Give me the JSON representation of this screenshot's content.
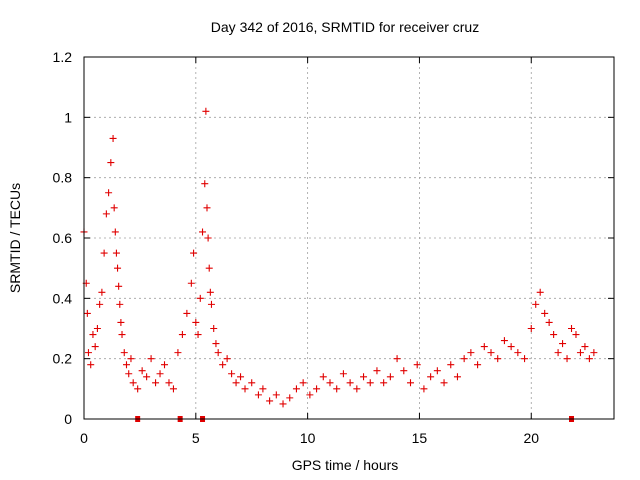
{
  "chart_data": {
    "type": "scatter",
    "title": "Day 342 of 2016, SRMTID for receiver cruz",
    "xlabel": "GPS time / hours",
    "ylabel": "SRMTID / TECUs",
    "xlim": [
      0,
      23.7
    ],
    "ylim": [
      0,
      1.2
    ],
    "x_ticks": [
      0,
      5,
      10,
      15,
      20
    ],
    "x_tick_labels": [
      "0",
      "5",
      "10",
      "15",
      "20"
    ],
    "y_ticks": [
      0,
      0.2,
      0.4,
      0.6,
      0.8,
      1.0,
      1.2
    ],
    "y_tick_labels": [
      "0",
      "0.2",
      "0.4",
      "0.6",
      "0.8",
      "1",
      "1.2"
    ],
    "grid": true,
    "marker": "+",
    "color": "#e00000",
    "series": [
      {
        "name": "SRMTID",
        "x": [
          0.0,
          0.1,
          0.15,
          0.2,
          0.3,
          0.4,
          0.5,
          0.6,
          0.7,
          0.8,
          0.9,
          1.0,
          1.1,
          1.2,
          1.3,
          1.35,
          1.4,
          1.45,
          1.5,
          1.55,
          1.6,
          1.65,
          1.7,
          1.8,
          1.9,
          2.0,
          2.1,
          2.2,
          2.4,
          2.6,
          2.8,
          3.0,
          3.2,
          3.4,
          3.6,
          3.8,
          4.0,
          4.2,
          4.4,
          4.6,
          4.8,
          4.9,
          5.0,
          5.1,
          5.2,
          5.3,
          5.4,
          5.45,
          5.5,
          5.55,
          5.6,
          5.65,
          5.7,
          5.8,
          5.9,
          6.0,
          6.2,
          6.4,
          6.6,
          6.8,
          7.0,
          7.2,
          7.5,
          7.8,
          8.0,
          8.3,
          8.6,
          8.9,
          9.2,
          9.5,
          9.8,
          10.1,
          10.4,
          10.7,
          11.0,
          11.3,
          11.6,
          11.9,
          12.2,
          12.5,
          12.8,
          13.1,
          13.4,
          13.7,
          14.0,
          14.3,
          14.6,
          14.9,
          15.2,
          15.5,
          15.8,
          16.1,
          16.4,
          16.7,
          17.0,
          17.3,
          17.6,
          17.9,
          18.2,
          18.5,
          18.8,
          19.1,
          19.4,
          19.7,
          20.0,
          20.2,
          20.4,
          20.6,
          20.8,
          21.0,
          21.2,
          21.4,
          21.6,
          21.8,
          22.0,
          22.2,
          22.4,
          22.6,
          22.8
        ],
        "y": [
          0.62,
          0.45,
          0.35,
          0.22,
          0.18,
          0.28,
          0.24,
          0.3,
          0.38,
          0.42,
          0.55,
          0.68,
          0.75,
          0.85,
          0.93,
          0.7,
          0.62,
          0.55,
          0.5,
          0.44,
          0.38,
          0.32,
          0.28,
          0.22,
          0.18,
          0.15,
          0.2,
          0.12,
          0.1,
          0.16,
          0.14,
          0.2,
          0.12,
          0.15,
          0.18,
          0.12,
          0.1,
          0.22,
          0.28,
          0.35,
          0.45,
          0.55,
          0.32,
          0.28,
          0.4,
          0.62,
          0.78,
          1.02,
          0.7,
          0.6,
          0.5,
          0.42,
          0.38,
          0.3,
          0.25,
          0.22,
          0.18,
          0.2,
          0.15,
          0.12,
          0.14,
          0.1,
          0.12,
          0.08,
          0.1,
          0.06,
          0.08,
          0.05,
          0.07,
          0.1,
          0.12,
          0.08,
          0.1,
          0.14,
          0.12,
          0.1,
          0.15,
          0.12,
          0.1,
          0.14,
          0.12,
          0.16,
          0.12,
          0.14,
          0.2,
          0.16,
          0.12,
          0.18,
          0.1,
          0.14,
          0.16,
          0.12,
          0.18,
          0.14,
          0.2,
          0.22,
          0.18,
          0.24,
          0.22,
          0.2,
          0.26,
          0.24,
          0.22,
          0.2,
          0.3,
          0.38,
          0.42,
          0.35,
          0.32,
          0.28,
          0.22,
          0.25,
          0.2,
          0.3,
          0.28,
          0.22,
          0.24,
          0.2,
          0.22
        ]
      }
    ],
    "gap_markers_x": [
      2.4,
      4.3,
      5.3,
      21.8
    ]
  }
}
